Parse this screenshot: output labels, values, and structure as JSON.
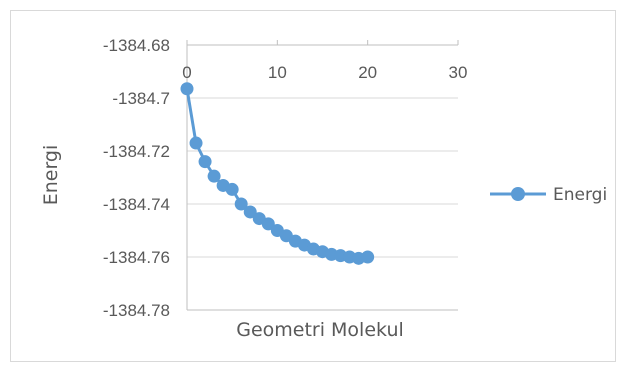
{
  "chart_data": {
    "type": "scatter",
    "series": [
      {
        "name": "Energi",
        "color": "#5b9bd5",
        "x": [
          0,
          1,
          2,
          3,
          4,
          5,
          6,
          7,
          8,
          9,
          10,
          11,
          12,
          13,
          14,
          15,
          16,
          17,
          18,
          19,
          20
        ],
        "y": [
          -1384.6965,
          -1384.717,
          -1384.724,
          -1384.7295,
          -1384.733,
          -1384.7345,
          -1384.74,
          -1384.743,
          -1384.7455,
          -1384.7475,
          -1384.75,
          -1384.752,
          -1384.754,
          -1384.7555,
          -1384.757,
          -1384.758,
          -1384.759,
          -1384.7595,
          -1384.76,
          -1384.7605,
          -1384.76
        ]
      }
    ],
    "xlabel": "Geometri Molekul",
    "ylabel": "Energi",
    "xlim": [
      0,
      30
    ],
    "ylim": [
      -1384.78,
      -1384.68
    ],
    "x_ticks": [
      "0",
      "10",
      "20",
      "30"
    ],
    "y_ticks": [
      "-1384.68",
      "-1384.7",
      "-1384.72",
      "-1384.74",
      "-1384.76",
      "-1384.78"
    ],
    "grid": true,
    "legend_position": "right"
  }
}
